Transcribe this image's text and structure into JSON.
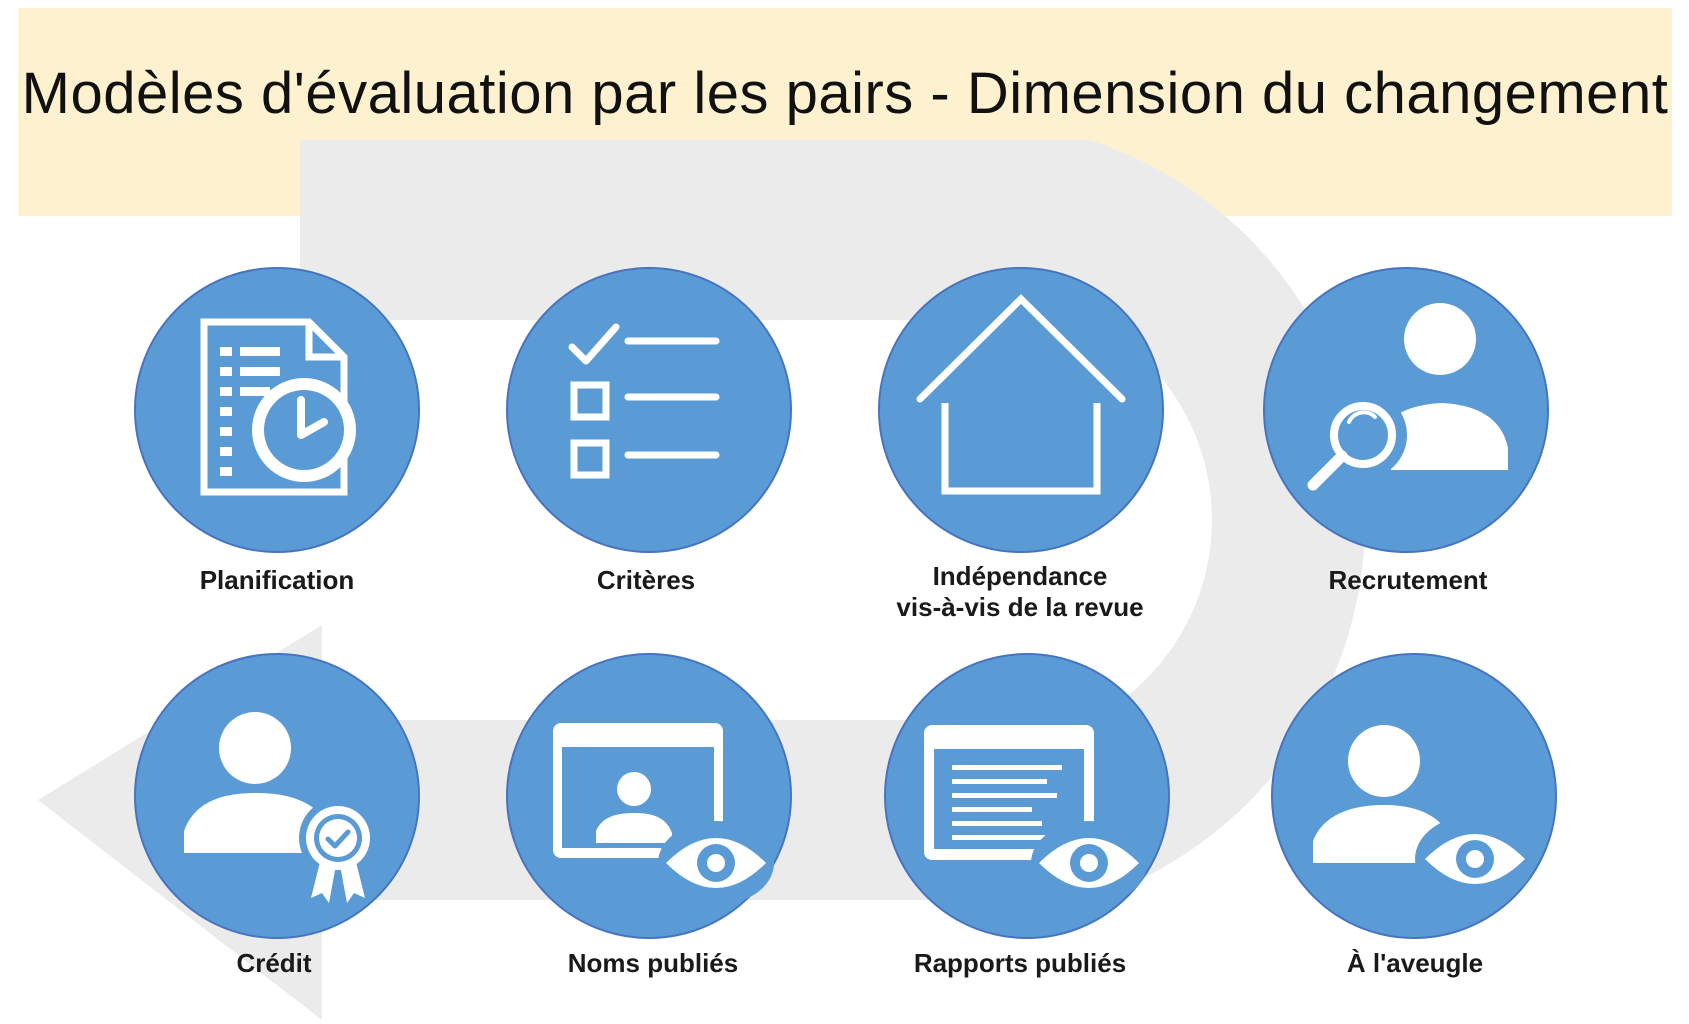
{
  "header": {
    "title": "Modèles d'évaluation par les pairs - Dimension du changement",
    "background_color": "#fdf1cf"
  },
  "colors": {
    "circle_fill": "#5b9bd5",
    "circle_border": "#4674c0",
    "arrow_fill": "#ebebeb",
    "icon_stroke": "#ffffff"
  },
  "nodes": [
    {
      "id": "planification",
      "label_lines": [
        "Planification"
      ],
      "icon": "document-clock-icon"
    },
    {
      "id": "criteres",
      "label_lines": [
        "Critères"
      ],
      "icon": "checklist-icon"
    },
    {
      "id": "independance",
      "label_lines": [
        "Indépendance",
        "vis-à-vis de la revue"
      ],
      "icon": "house-icon"
    },
    {
      "id": "recrutement",
      "label_lines": [
        "Recrutement"
      ],
      "icon": "user-search-icon"
    },
    {
      "id": "credit",
      "label_lines": [
        "Crédit"
      ],
      "icon": "user-badge-icon"
    },
    {
      "id": "noms-publies",
      "label_lines": [
        "Noms publiés"
      ],
      "icon": "profile-window-eye-icon"
    },
    {
      "id": "rapports-publies",
      "label_lines": [
        "Rapports publiés"
      ],
      "icon": "report-window-eye-icon"
    },
    {
      "id": "aveugle",
      "label_lines": [
        "À l'aveugle"
      ],
      "icon": "user-eye-icon"
    }
  ]
}
